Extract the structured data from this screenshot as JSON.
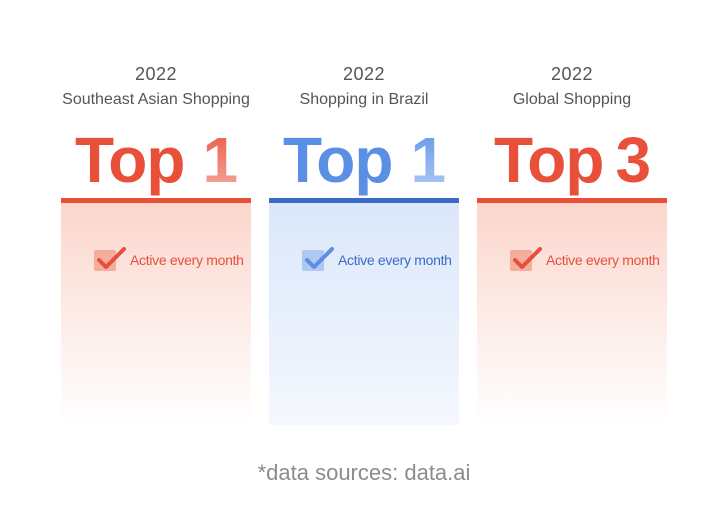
{
  "cards": [
    {
      "year": "2022",
      "subtitle": "Southeast Asian Shopping",
      "rank_word": "Top",
      "rank_number": "1",
      "badge_label": "Active every month",
      "accent": "#e8503a"
    },
    {
      "year": "2022",
      "subtitle": "Shopping in Brazil",
      "rank_word": "Top",
      "rank_number": "1",
      "badge_label": "Active every month",
      "accent": "#3a6bc8"
    },
    {
      "year": "2022",
      "subtitle": "Global Shopping",
      "rank_word": "Top",
      "rank_number": "3",
      "badge_label": "Active every month",
      "accent": "#e8503a"
    }
  ],
  "icons": {
    "badge": "checkmark-icon"
  },
  "footer": {
    "source": "*data sources: data.ai"
  }
}
